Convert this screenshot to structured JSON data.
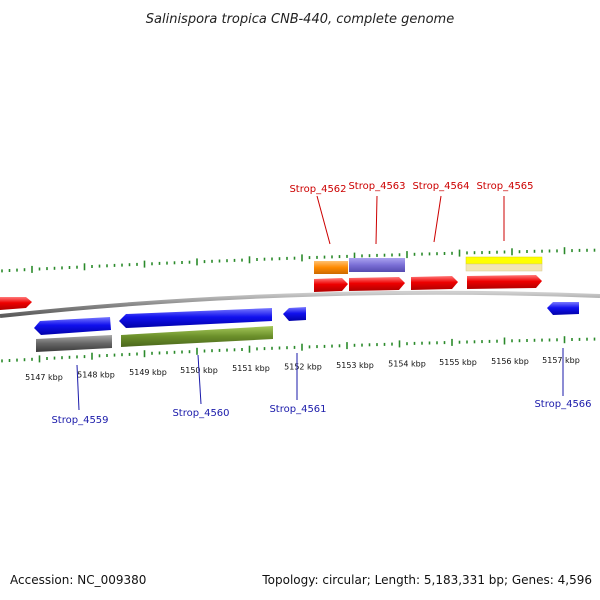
{
  "title": "Salinispora tropica CNB-440, complete genome",
  "ruler_labels": [
    "5147 kbp",
    "5148 kbp",
    "5149 kbp",
    "5150 kbp",
    "5151 kbp",
    "5152 kbp",
    "5153 kbp",
    "5154 kbp",
    "5155 kbp",
    "5156 kbp",
    "5157 kbp"
  ],
  "gene_labels_forward": [
    "Strop_4562",
    "Strop_4563",
    "Strop_4564",
    "Strop_4565"
  ],
  "gene_labels_reverse": [
    "Strop_4559",
    "Strop_4560",
    "Strop_4561",
    "Strop_4566"
  ],
  "colors": {
    "forward_label": "#cc0000",
    "reverse_label": "#1a1aaa",
    "forward_cds": "#ee0000",
    "reverse_cds": "#1111ee",
    "tick": "#2a8a2a",
    "backbone": "#888888",
    "orange_feature": "#ff8a00",
    "purple_feature": "#7b6fd6",
    "yellow_feature": "#ffff00",
    "tan_feature": "#f3e6b3",
    "gray_feature": "#666666",
    "olive_feature": "#6b8f2a"
  },
  "footer": {
    "accession": "Accession: NC_009380",
    "summary": "Topology: circular; Length: 5,183,331 bp; Genes: 4,596"
  }
}
